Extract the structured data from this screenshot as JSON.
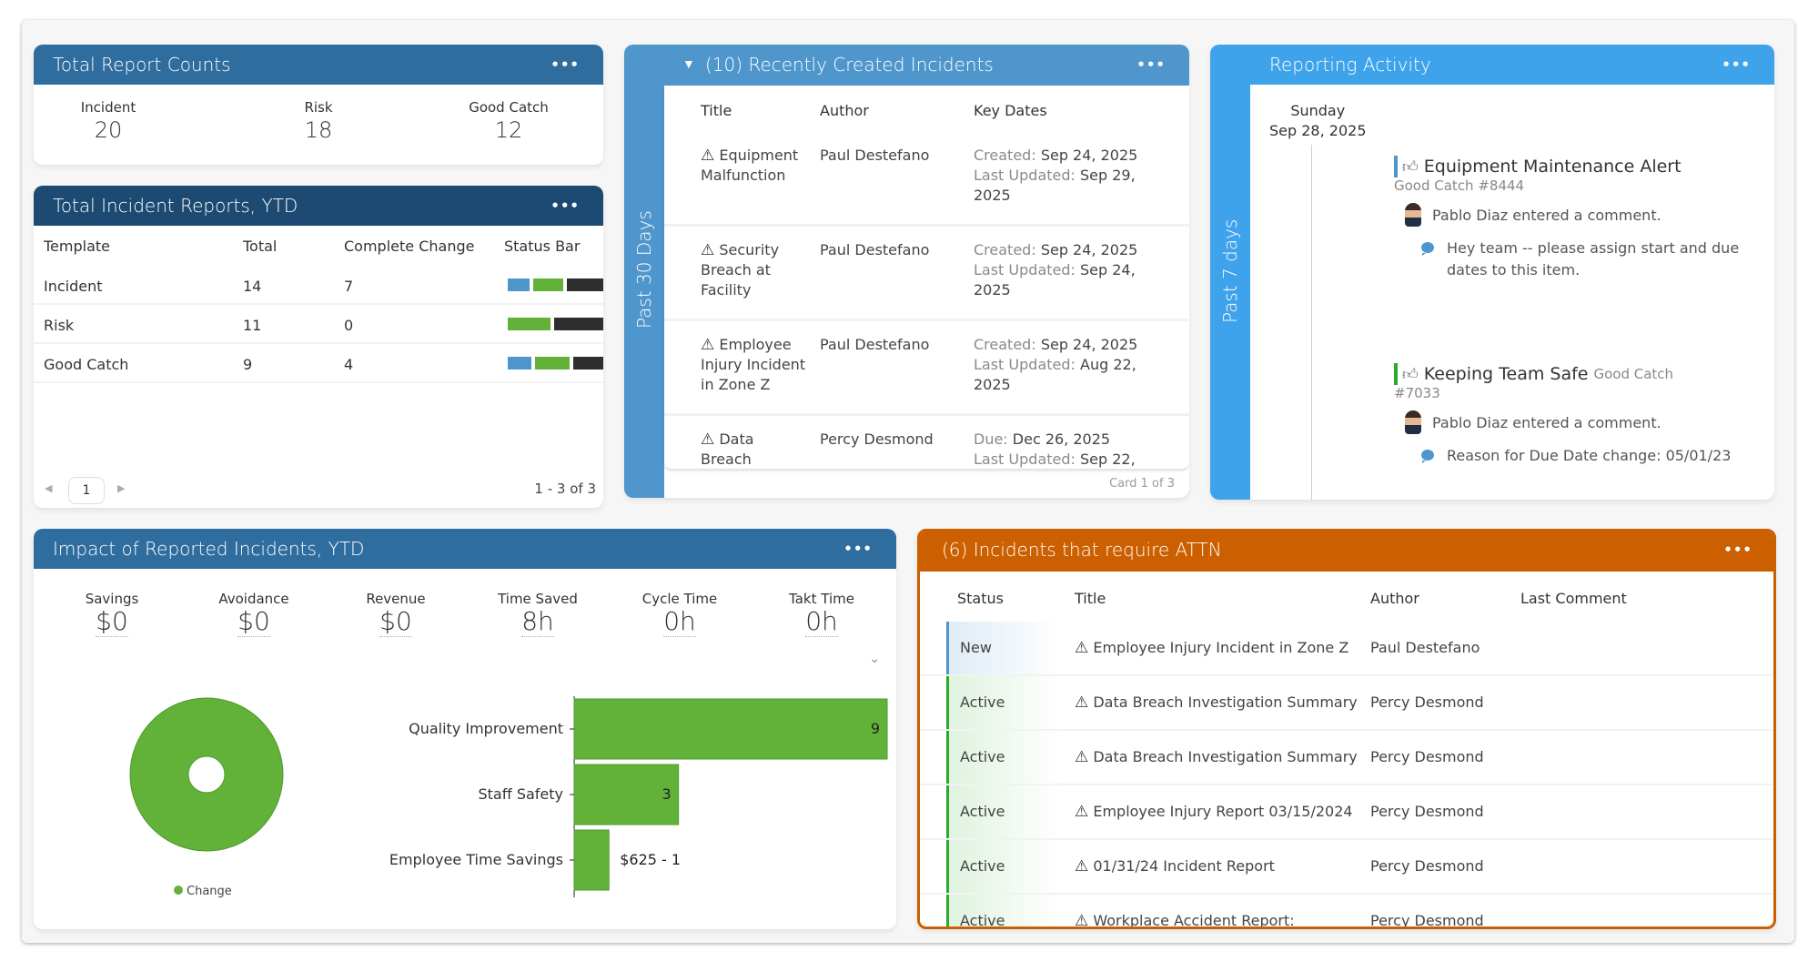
{
  "report_counts": {
    "title": "Total Report Counts",
    "menu": "•••",
    "items": [
      {
        "label": "Incident",
        "value": "20"
      },
      {
        "label": "Risk",
        "value": "18"
      },
      {
        "label": "Good Catch",
        "value": "12"
      }
    ]
  },
  "ytd_reports": {
    "title": "Total Incident Reports, YTD",
    "menu": "•••",
    "columns": [
      "Template",
      "Total",
      "Complete Change",
      "Status Bar"
    ],
    "rows": [
      {
        "template": "Incident",
        "total": "14",
        "complete_change": "7",
        "status_segments": [
          {
            "color": "#4f96cc",
            "fraction": 0.24
          },
          {
            "color": "#62b23a",
            "fraction": 0.32
          },
          {
            "color": "#2e2e2e",
            "fraction": 0.44
          }
        ]
      },
      {
        "template": "Risk",
        "total": "11",
        "complete_change": "0",
        "status_segments": [
          {
            "color": "#62b23a",
            "fraction": 0.44
          },
          {
            "color": "#2e2e2e",
            "fraction": 0.56
          }
        ]
      },
      {
        "template": "Good Catch",
        "total": "9",
        "complete_change": "4",
        "status_segments": [
          {
            "color": "#4f96cc",
            "fraction": 0.25
          },
          {
            "color": "#62b23a",
            "fraction": 0.38
          },
          {
            "color": "#2e2e2e",
            "fraction": 0.37
          }
        ]
      }
    ],
    "pager": {
      "prev": "◀",
      "page": "1",
      "next": "▶",
      "range": "1 - 3 of 3"
    }
  },
  "recent": {
    "caret": "▼",
    "title": "(10) Recently Created Incidents",
    "menu": "•••",
    "side_label": "Past 30 Days",
    "columns": [
      "Title",
      "Author",
      "Key Dates"
    ],
    "rows": [
      {
        "icon": "⚠",
        "title": "Equipment Malfunction",
        "author": "Paul Destefano",
        "d1_label": "Created:",
        "d1": "Sep 24, 2025",
        "d2_label": "Last Updated:",
        "d2": "Sep 29, 2025"
      },
      {
        "icon": "⚠",
        "title": "Security Breach at Facility",
        "author": "Paul Destefano",
        "d1_label": "Created:",
        "d1": "Sep 24, 2025",
        "d2_label": "Last Updated:",
        "d2": "Sep 24, 2025"
      },
      {
        "icon": "⚠",
        "title": "Employee Injury Incident in Zone Z",
        "author": "Paul Destefano",
        "d1_label": "Created:",
        "d1": "Sep 24, 2025",
        "d2_label": "Last Updated:",
        "d2": "Aug 22, 2025"
      },
      {
        "icon": "⚠",
        "title": "Data Breach",
        "author": "Percy Desmond",
        "d1_label": "Due:",
        "d1": "Dec 26, 2025",
        "d2_label": "Last Updated:",
        "d2": "Sep 22,"
      }
    ],
    "card_counter": "Card 1 of 3"
  },
  "activity": {
    "title": "Reporting Activity",
    "menu": "•••",
    "side_label": "Past 7 days",
    "day": "Sunday",
    "date": "Sep 28, 2025",
    "items": [
      {
        "title": "Equipment Maintenance Alert",
        "type": "Good Catch #8444",
        "bar_color": "#4f96cc",
        "user_action": "Pablo Diaz entered a comment.",
        "comment": "Hey team -- please assign start and due dates to this item."
      },
      {
        "title": "Keeping Team Safe",
        "type": "Good Catch",
        "type_id": "#7033",
        "bar_color": "#2aaa2a",
        "user_action": "Pablo Diaz entered a comment.",
        "comment": "Reason for Due Date change: 05/01/23"
      }
    ]
  },
  "impact": {
    "title": "Impact of Reported Incidents, YTD",
    "menu": "•••",
    "metrics": [
      {
        "label": "Savings",
        "value": "$0"
      },
      {
        "label": "Avoidance",
        "value": "$0"
      },
      {
        "label": "Revenue",
        "value": "$0"
      },
      {
        "label": "Time Saved",
        "value": "8h"
      },
      {
        "label": "Cycle Time",
        "value": "0h"
      },
      {
        "label": "Takt Time",
        "value": "0h"
      }
    ],
    "expand_icon": "⌄"
  },
  "chart_data": [
    {
      "type": "pie",
      "variant": "donut",
      "title": "",
      "slices": [
        {
          "label": "Change",
          "value": 1,
          "color": "#62b23a"
        }
      ],
      "legend": [
        "Change"
      ],
      "legend_position": "bottom"
    },
    {
      "type": "bar",
      "orientation": "horizontal",
      "title": "",
      "categories": [
        "Quality Improvement",
        "Staff Safety",
        "Employee Time Savings"
      ],
      "values": [
        9,
        3,
        1
      ],
      "data_labels": [
        "9",
        "3",
        "$625 - 1"
      ],
      "xlim": [
        0,
        9
      ],
      "color": "#62b23a",
      "grid": false
    }
  ],
  "attn": {
    "title": "(6) Incidents that require ATTN",
    "menu": "•••",
    "columns": [
      "Status",
      "Title",
      "Author",
      "Last Comment"
    ],
    "rows": [
      {
        "status": "New",
        "status_color": "#4f96cc",
        "icon": "⚠",
        "title": "Employee Injury Incident in Zone Z",
        "author": "Paul Destefano",
        "last_comment": ""
      },
      {
        "status": "Active",
        "status_color": "#2aaa2a",
        "icon": "⚠",
        "title": "Data Breach Investigation Summary",
        "author": "Percy Desmond",
        "last_comment": ""
      },
      {
        "status": "Active",
        "status_color": "#2aaa2a",
        "icon": "⚠",
        "title": "Data Breach Investigation Summary",
        "author": "Percy Desmond",
        "last_comment": ""
      },
      {
        "status": "Active",
        "status_color": "#2aaa2a",
        "icon": "⚠",
        "title": "Employee Injury Report 03/15/2024",
        "author": "Percy Desmond",
        "last_comment": ""
      },
      {
        "status": "Active",
        "status_color": "#2aaa2a",
        "icon": "⚠",
        "title": "01/31/24 Incident Report",
        "author": "Percy Desmond",
        "last_comment": ""
      },
      {
        "status": "Active",
        "status_color": "#2aaa2a",
        "icon": "⚠",
        "title": "Workplace Accident Report:",
        "author": "Percy Desmond",
        "last_comment": ""
      }
    ]
  }
}
